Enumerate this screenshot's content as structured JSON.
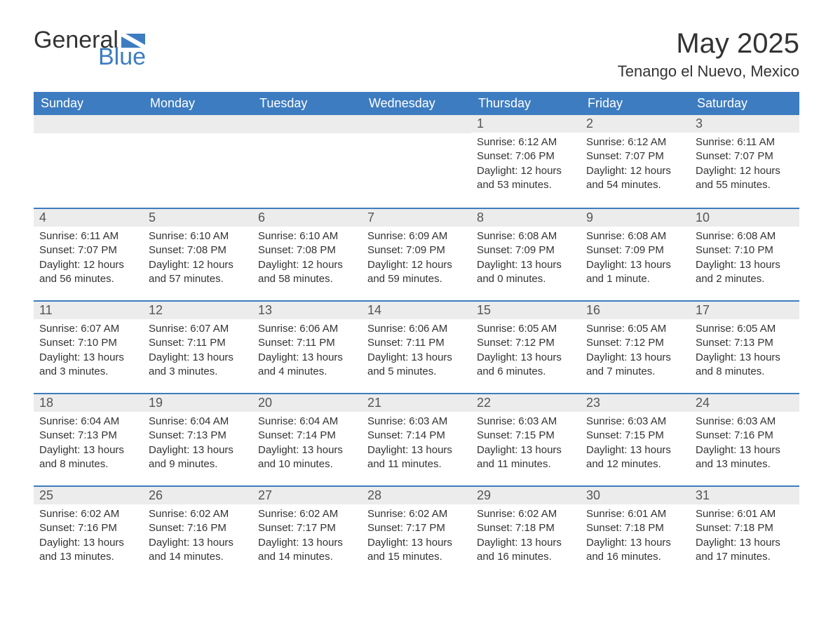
{
  "logo": {
    "word1": "General",
    "word2": "Blue",
    "accent_color": "#3d7cc0"
  },
  "title": "May 2025",
  "location": "Tenango el Nuevo, Mexico",
  "colors": {
    "header_bg": "#3d7cc0",
    "header_text": "#ffffff",
    "daynum_bg": "#ececec",
    "border_top": "#3d7cc0",
    "body_text": "#333333",
    "page_bg": "#ffffff"
  },
  "typography": {
    "title_fontsize": 40,
    "location_fontsize": 22,
    "header_fontsize": 18,
    "daynum_fontsize": 18,
    "body_fontsize": 15,
    "font_family": "Segoe UI / Arial"
  },
  "layout": {
    "columns": 7,
    "rows": 5,
    "start_weekday": "Sunday",
    "first_day_column_index": 4
  },
  "weekdays": [
    "Sunday",
    "Monday",
    "Tuesday",
    "Wednesday",
    "Thursday",
    "Friday",
    "Saturday"
  ],
  "days": [
    {
      "n": 1,
      "sunrise": "6:12 AM",
      "sunset": "7:06 PM",
      "daylight": "12 hours and 53 minutes."
    },
    {
      "n": 2,
      "sunrise": "6:12 AM",
      "sunset": "7:07 PM",
      "daylight": "12 hours and 54 minutes."
    },
    {
      "n": 3,
      "sunrise": "6:11 AM",
      "sunset": "7:07 PM",
      "daylight": "12 hours and 55 minutes."
    },
    {
      "n": 4,
      "sunrise": "6:11 AM",
      "sunset": "7:07 PM",
      "daylight": "12 hours and 56 minutes."
    },
    {
      "n": 5,
      "sunrise": "6:10 AM",
      "sunset": "7:08 PM",
      "daylight": "12 hours and 57 minutes."
    },
    {
      "n": 6,
      "sunrise": "6:10 AM",
      "sunset": "7:08 PM",
      "daylight": "12 hours and 58 minutes."
    },
    {
      "n": 7,
      "sunrise": "6:09 AM",
      "sunset": "7:09 PM",
      "daylight": "12 hours and 59 minutes."
    },
    {
      "n": 8,
      "sunrise": "6:08 AM",
      "sunset": "7:09 PM",
      "daylight": "13 hours and 0 minutes."
    },
    {
      "n": 9,
      "sunrise": "6:08 AM",
      "sunset": "7:09 PM",
      "daylight": "13 hours and 1 minute."
    },
    {
      "n": 10,
      "sunrise": "6:08 AM",
      "sunset": "7:10 PM",
      "daylight": "13 hours and 2 minutes."
    },
    {
      "n": 11,
      "sunrise": "6:07 AM",
      "sunset": "7:10 PM",
      "daylight": "13 hours and 3 minutes."
    },
    {
      "n": 12,
      "sunrise": "6:07 AM",
      "sunset": "7:11 PM",
      "daylight": "13 hours and 3 minutes."
    },
    {
      "n": 13,
      "sunrise": "6:06 AM",
      "sunset": "7:11 PM",
      "daylight": "13 hours and 4 minutes."
    },
    {
      "n": 14,
      "sunrise": "6:06 AM",
      "sunset": "7:11 PM",
      "daylight": "13 hours and 5 minutes."
    },
    {
      "n": 15,
      "sunrise": "6:05 AM",
      "sunset": "7:12 PM",
      "daylight": "13 hours and 6 minutes."
    },
    {
      "n": 16,
      "sunrise": "6:05 AM",
      "sunset": "7:12 PM",
      "daylight": "13 hours and 7 minutes."
    },
    {
      "n": 17,
      "sunrise": "6:05 AM",
      "sunset": "7:13 PM",
      "daylight": "13 hours and 8 minutes."
    },
    {
      "n": 18,
      "sunrise": "6:04 AM",
      "sunset": "7:13 PM",
      "daylight": "13 hours and 8 minutes."
    },
    {
      "n": 19,
      "sunrise": "6:04 AM",
      "sunset": "7:13 PM",
      "daylight": "13 hours and 9 minutes."
    },
    {
      "n": 20,
      "sunrise": "6:04 AM",
      "sunset": "7:14 PM",
      "daylight": "13 hours and 10 minutes."
    },
    {
      "n": 21,
      "sunrise": "6:03 AM",
      "sunset": "7:14 PM",
      "daylight": "13 hours and 11 minutes."
    },
    {
      "n": 22,
      "sunrise": "6:03 AM",
      "sunset": "7:15 PM",
      "daylight": "13 hours and 11 minutes."
    },
    {
      "n": 23,
      "sunrise": "6:03 AM",
      "sunset": "7:15 PM",
      "daylight": "13 hours and 12 minutes."
    },
    {
      "n": 24,
      "sunrise": "6:03 AM",
      "sunset": "7:16 PM",
      "daylight": "13 hours and 13 minutes."
    },
    {
      "n": 25,
      "sunrise": "6:02 AM",
      "sunset": "7:16 PM",
      "daylight": "13 hours and 13 minutes."
    },
    {
      "n": 26,
      "sunrise": "6:02 AM",
      "sunset": "7:16 PM",
      "daylight": "13 hours and 14 minutes."
    },
    {
      "n": 27,
      "sunrise": "6:02 AM",
      "sunset": "7:17 PM",
      "daylight": "13 hours and 14 minutes."
    },
    {
      "n": 28,
      "sunrise": "6:02 AM",
      "sunset": "7:17 PM",
      "daylight": "13 hours and 15 minutes."
    },
    {
      "n": 29,
      "sunrise": "6:02 AM",
      "sunset": "7:18 PM",
      "daylight": "13 hours and 16 minutes."
    },
    {
      "n": 30,
      "sunrise": "6:01 AM",
      "sunset": "7:18 PM",
      "daylight": "13 hours and 16 minutes."
    },
    {
      "n": 31,
      "sunrise": "6:01 AM",
      "sunset": "7:18 PM",
      "daylight": "13 hours and 17 minutes."
    }
  ],
  "labels": {
    "sunrise": "Sunrise:",
    "sunset": "Sunset:",
    "daylight": "Daylight:"
  }
}
